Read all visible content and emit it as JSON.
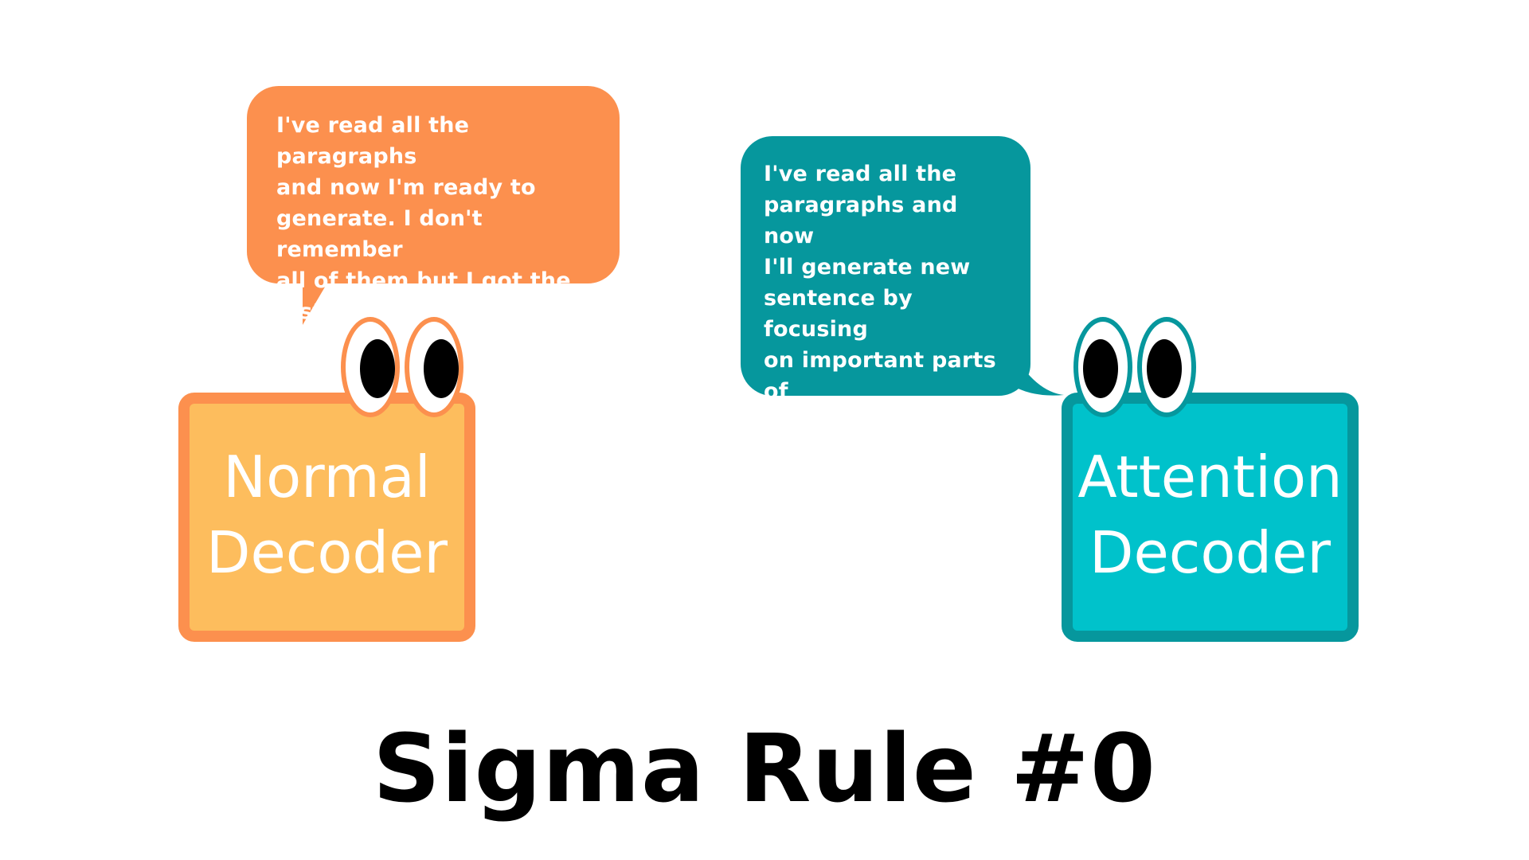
{
  "colors": {
    "orange_bubble": "#fc904e",
    "orange_box_fill": "#fdbd5d",
    "teal_bubble": "#06979d",
    "teal_box_fill": "#00c2cb",
    "text_dark": "#000000",
    "text_light": "#ffffff"
  },
  "normal": {
    "speech": "I've read all the paragraphs\nand now I'm ready to\ngenerate. I don't remember\nall of them but I got the gist\nof it, I'm smart after all.",
    "label": "Normal\nDecoder"
  },
  "attention": {
    "speech": "I've read all the\nparagraphs and now\nI'll generate new\nsentence by focusing\non important parts of\nthat timestep,\nPeasant!",
    "label": "Attention\nDecoder"
  },
  "title": "Sigma Rule #0"
}
